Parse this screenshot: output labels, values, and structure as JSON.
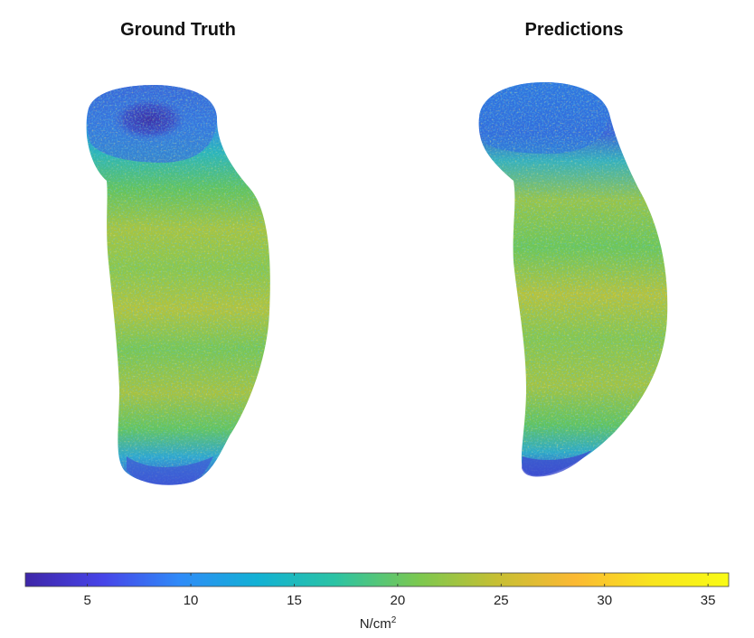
{
  "panels": [
    {
      "title": "Ground Truth"
    },
    {
      "title": "Predictions"
    }
  ],
  "colorbar": {
    "min": 2,
    "max": 36,
    "ticks": [
      {
        "value": 5,
        "label": "5"
      },
      {
        "value": 10,
        "label": "10"
      },
      {
        "value": 15,
        "label": "15"
      },
      {
        "value": 20,
        "label": "20"
      },
      {
        "value": 25,
        "label": "25"
      },
      {
        "value": 30,
        "label": "30"
      },
      {
        "value": 35,
        "label": "35"
      }
    ],
    "unit_base": "N/cm",
    "unit_exp": "2",
    "colormap": [
      "#3e26a8",
      "#4744e8",
      "#2f8bf8",
      "#12b1d4",
      "#2bc3a4",
      "#7cc84f",
      "#c6bf33",
      "#fbb933",
      "#f8e41e",
      "#f9fb15"
    ]
  }
}
